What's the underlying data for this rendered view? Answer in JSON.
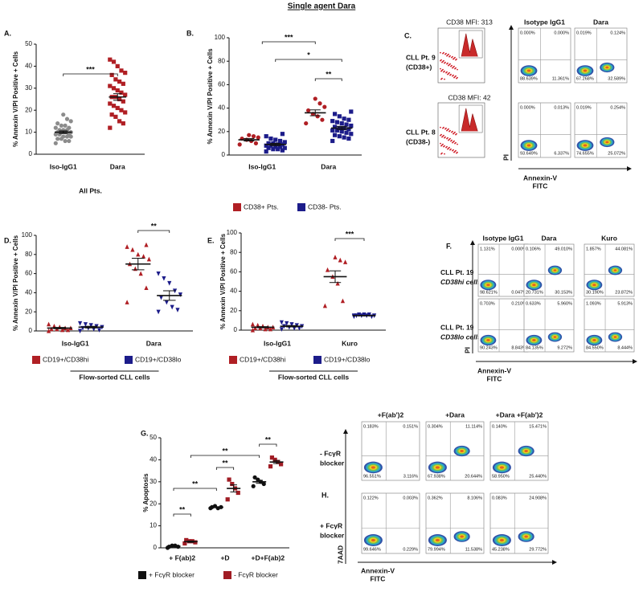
{
  "title": "Single agent Dara",
  "chart_data": [
    {
      "type": "dotplot",
      "panel": "A.",
      "ylabel": "% Annexin V/PI Positive + Cells",
      "xlabel": "All Pts.",
      "categories": [
        "Iso-IgG1",
        "Dara"
      ],
      "ylim": [
        0,
        50
      ],
      "yticks": [
        0,
        10,
        20,
        30,
        40,
        50
      ],
      "annotations": [
        "***"
      ],
      "series": [
        {
          "colors": [
            "#8c8c8c",
            "#b01f24"
          ],
          "markers": [
            "circle",
            "square"
          ],
          "values": [
            [
              5,
              6,
              6,
              7,
              7,
              8,
              8,
              8,
              9,
              9,
              9,
              10,
              10,
              10,
              10,
              11,
              11,
              11,
              12,
              12,
              13,
              13,
              14,
              15,
              16,
              18
            ],
            [
              12,
              14,
              15,
              17,
              18,
              19,
              20,
              21,
              22,
              23,
              24,
              25,
              26,
              26,
              27,
              28,
              29,
              30,
              31,
              32,
              33,
              34,
              36,
              37,
              38,
              40,
              42,
              43
            ]
          ],
          "means": [
            10,
            26
          ],
          "sems": [
            0.6,
            1.5
          ]
        }
      ]
    },
    {
      "type": "dotplot",
      "panel": "B.",
      "ylabel": "% Annexin V/PI Positive + Cells",
      "categories": [
        "Iso-IgG1",
        "Dara"
      ],
      "ylim": [
        0,
        100
      ],
      "yticks": [
        0,
        20,
        40,
        60,
        80,
        100
      ],
      "annotations": [
        "***",
        "*",
        "**"
      ],
      "series": [
        {
          "name": "CD38+ Pts.",
          "color": "#b01f24",
          "marker": "circle",
          "values": [
            [
              9,
              10,
              12,
              13,
              14,
              15,
              16,
              17
            ],
            [
              27,
              30,
              33,
              35,
              38,
              41,
              44,
              48
            ]
          ],
          "means": [
            13,
            36
          ],
          "sems": [
            1,
            2.5
          ]
        },
        {
          "name": "CD38- Pts.",
          "color": "#1c1c8a",
          "marker": "square",
          "values": [
            [
              3,
              4,
              5,
              5,
              6,
              6,
              7,
              7,
              8,
              8,
              9,
              9,
              10,
              10,
              11,
              12,
              13,
              14,
              16,
              18
            ],
            [
              12,
              14,
              15,
              16,
              17,
              18,
              19,
              20,
              21,
              21,
              22,
              23,
              23,
              24,
              25,
              26,
              27,
              28,
              29,
              30,
              31,
              33,
              35,
              37
            ]
          ],
          "means": [
            9,
            23
          ],
          "sems": [
            1,
            1.4
          ]
        }
      ]
    },
    {
      "type": "dotplot",
      "panel": "D.",
      "ylabel": "% Annexin V/PI Positive + Cells",
      "xlabel": "Flow-sorted CLL cells",
      "categories": [
        "Iso-IgG1",
        "Dara"
      ],
      "ylim": [
        0,
        100
      ],
      "yticks": [
        0,
        20,
        40,
        60,
        80,
        100
      ],
      "annotations": [
        "**"
      ],
      "series": [
        {
          "name": "CD19+/CD38hi",
          "color": "#b01f24",
          "marker": "triangle",
          "values": [
            [
              0,
              1,
              1,
              2,
              2,
              3,
              3,
              4,
              5,
              7
            ],
            [
              30,
              45,
              60,
              65,
              70,
              75,
              78,
              80,
              85,
              88,
              90
            ]
          ],
          "means": [
            3,
            70
          ],
          "sems": [
            0.7,
            6
          ]
        },
        {
          "name": "CD19+/CD38lo",
          "color": "#1c1c8a",
          "marker": "triangle-down",
          "values": [
            [
              0,
              1,
              2,
              3,
              3,
              4,
              5,
              6,
              7,
              8
            ],
            [
              20,
              22,
              25,
              30,
              35,
              38,
              42,
              50,
              55,
              60
            ]
          ],
          "means": [
            4,
            37
          ],
          "sems": [
            0.8,
            5
          ]
        }
      ]
    },
    {
      "type": "dotplot",
      "panel": "E.",
      "ylabel": "% Annexin V/PI Positive + Cells",
      "xlabel": "Flow-sorted CLL cells",
      "categories": [
        "Iso-IgG1",
        "Kuro"
      ],
      "ylim": [
        0,
        100
      ],
      "yticks": [
        0,
        20,
        40,
        60,
        80,
        100
      ],
      "annotations": [
        "***"
      ],
      "series": [
        {
          "name": "CD19+/CD38hi",
          "color": "#b01f24",
          "marker": "triangle",
          "values": [
            [
              0,
              1,
              1,
              2,
              2,
              3,
              3,
              4,
              5,
              6
            ],
            [
              25,
              30,
              48,
              55,
              62,
              70,
              72,
              75
            ]
          ],
          "means": [
            3,
            55
          ],
          "sems": [
            0.6,
            6
          ]
        },
        {
          "name": "CD19+/CD38lo",
          "color": "#1c1c8a",
          "marker": "triangle-down",
          "values": [
            [
              1,
              2,
              2,
              3,
              4,
              4,
              5,
              6,
              7,
              8
            ],
            [
              14,
              14,
              15,
              15,
              15,
              15,
              16,
              16,
              16,
              15
            ]
          ],
          "means": [
            4,
            15
          ],
          "sems": [
            0.7,
            0.3
          ]
        }
      ]
    },
    {
      "type": "dotplot",
      "panel": "G.",
      "ylabel": "% Apoptosis",
      "categories": [
        "+ F(ab)2",
        "+D",
        "+D+F(ab)2"
      ],
      "ylim": [
        0,
        50
      ],
      "yticks": [
        0,
        10,
        20,
        30,
        40,
        50
      ],
      "annotations": [
        "**",
        "**",
        "**",
        "**",
        "**"
      ],
      "series": [
        {
          "name": "+ FcγR blocker",
          "color": "#111111",
          "marker": "circle",
          "values": [
            [
              0,
              0.5,
              1,
              1,
              0.5
            ],
            [
              18,
              18.5,
              18,
              19,
              18.5
            ],
            [
              28,
              29,
              30,
              31,
              32
            ]
          ],
          "means": [
            0.7,
            18.4,
            30
          ],
          "sems": [
            0.2,
            0.2,
            0.7
          ]
        },
        {
          "name": "- FcγR blocker",
          "color": "#a01c24",
          "marker": "square",
          "values": [
            [
              2,
              2.5,
              3,
              3,
              3.5
            ],
            [
              22,
              25,
              27,
              29,
              31
            ],
            [
              37,
              38,
              39,
              40,
              41
            ]
          ],
          "means": [
            2.8,
            27,
            39
          ],
          "sems": [
            0.3,
            1.6,
            0.7
          ]
        }
      ]
    }
  ],
  "flow_panels": [
    {
      "panel": "C.",
      "ylabel": "PI",
      "xlabel": [
        "Annexin-V",
        "FITC"
      ],
      "columns": [
        "Isotype IgG1",
        "Dara"
      ],
      "rows": [
        {
          "label": [
            "CLL Pt. 9",
            "(CD38+)"
          ],
          "mfi": "CD38 MFI: 313",
          "quadrants": [
            [
              "0.000%",
              "0.000%",
              "88.639%",
              "11.361%"
            ],
            [
              "0.019%",
              "0.124%",
              "67.268%",
              "32.589%"
            ]
          ]
        },
        {
          "label": [
            "CLL Pt. 8",
            "(CD38-)"
          ],
          "mfi": "CD38 MFI: 42",
          "quadrants": [
            [
              "0.000%",
              "0.013%",
              "93.649%",
              "6.337%"
            ],
            [
              "0.019%",
              "0.254%",
              "74.655%",
              "25.072%"
            ]
          ]
        }
      ]
    },
    {
      "panel": "F.",
      "ylabel": "PI",
      "xlabel": [
        "Annexin-V",
        "FITC"
      ],
      "columns": [
        "Isotype IgG1",
        "Dara",
        "Kuro"
      ],
      "rows": [
        {
          "label": [
            "CLL Pt. 19",
            "CD38hi cells"
          ],
          "quadrants": [
            [
              "1.131%",
              "0.000%",
              "98.621%",
              "0.047%"
            ],
            [
              "0.106%",
              "49.010%",
              "20.731%",
              "30.153%"
            ],
            [
              "1.857%",
              "44.081%",
              "30.190%",
              "23.872%"
            ]
          ]
        },
        {
          "label": [
            "CLL Pt. 19",
            "CD38lo cells"
          ],
          "quadrants": [
            [
              "0.703%",
              "0.210%",
              "90.243%",
              "8.843%"
            ],
            [
              "0.633%",
              "5.960%",
              "84.135%",
              "9.272%"
            ],
            [
              "1.093%",
              "5.913%",
              "84.550%",
              "8.444%"
            ]
          ]
        }
      ]
    },
    {
      "panel": "H.",
      "ylabel": "7AAD",
      "xlabel": [
        "Annexin-V",
        "FITC"
      ],
      "columns": [
        "+F(ab')2",
        "+Dara",
        "+Dara +F(ab')2"
      ],
      "rows": [
        {
          "label": [
            "- FcγR",
            "blocker"
          ],
          "quadrants": [
            [
              "0.183%",
              "0.151%",
              "96.551%",
              "3.116%"
            ],
            [
              "0.304%",
              "11.114%",
              "67.938%",
              "20.644%"
            ],
            [
              "0.140%",
              "15.471%",
              "58.950%",
              "25.440%"
            ]
          ]
        },
        {
          "label": [
            "+ FcγR",
            "blocker"
          ],
          "quadrants": [
            [
              "0.122%",
              "0.003%",
              "99.646%",
              "0.229%"
            ],
            [
              "0.362%",
              "8.106%",
              "79.994%",
              "11.538%"
            ],
            [
              "0.083%",
              "24.908%",
              "45.238%",
              "29.772%"
            ]
          ]
        }
      ]
    }
  ]
}
